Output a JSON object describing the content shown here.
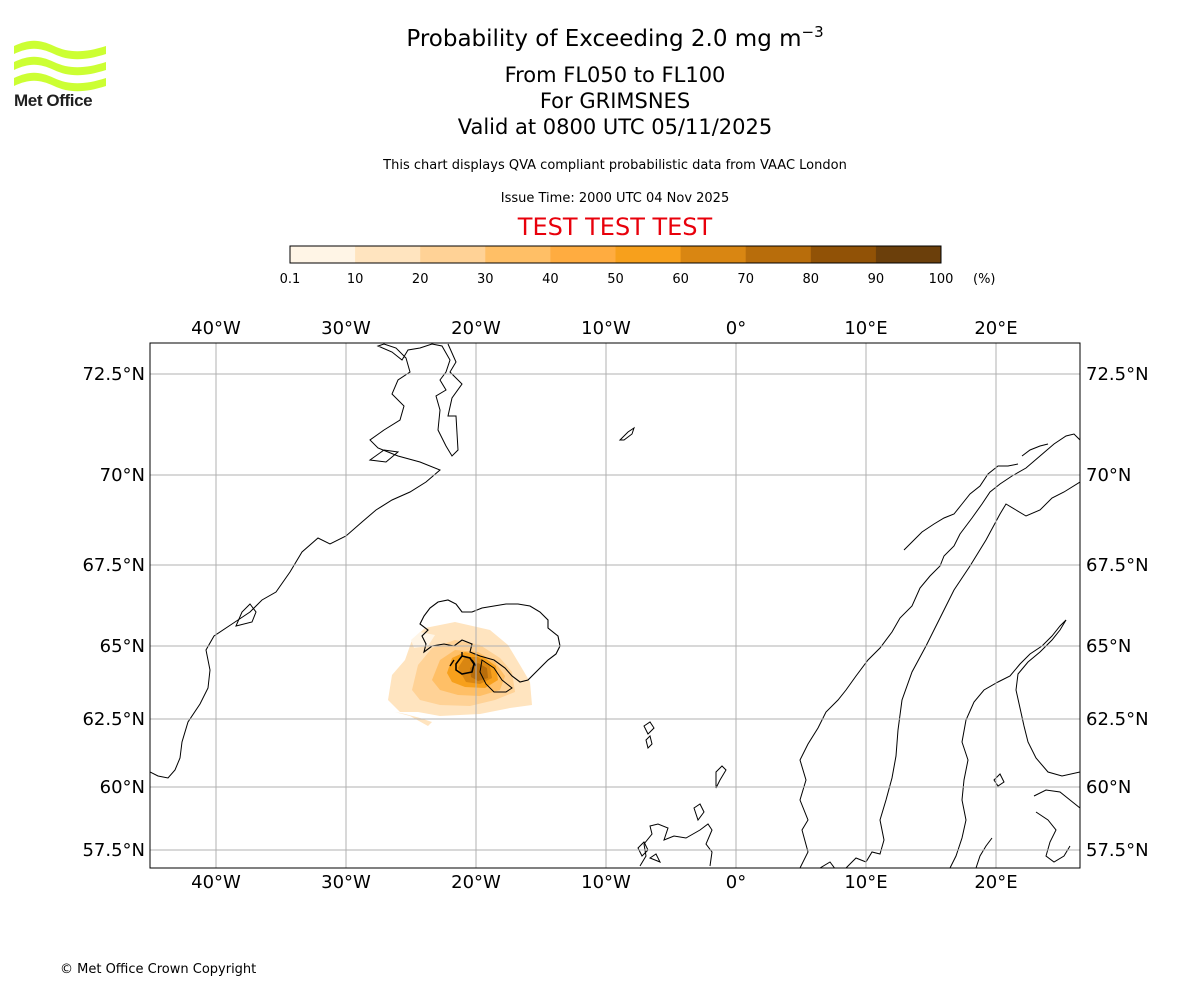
{
  "header": {
    "title_main": "Probability of Exceeding 2.0 mg m",
    "title_exponent": "−3",
    "flight_levels": "From FL050 to FL100",
    "volcano": "For GRIMSNES",
    "valid_time": "Valid at 0800 UTC 05/11/2025",
    "description": "This chart displays QVA compliant probabilistic data from VAAC London",
    "issue_time": "Issue Time: 2000 UTC 04 Nov 2025",
    "test_banner": "TEST TEST TEST"
  },
  "logo": {
    "text": "Met Office",
    "color": "#ccff33"
  },
  "colorbar": {
    "unit_label": "(%)",
    "ticks": [
      "0.1",
      "10",
      "20",
      "30",
      "40",
      "50",
      "60",
      "70",
      "80",
      "90",
      "100"
    ],
    "colors": [
      "#fff5e6",
      "#ffe4bf",
      "#ffd296",
      "#ffbf66",
      "#ffac40",
      "#f7a01c",
      "#d98612",
      "#b86d0b",
      "#915206",
      "#6b3f0b"
    ]
  },
  "map": {
    "lon_labels": [
      "40°W",
      "30°W",
      "20°W",
      "10°W",
      "0°",
      "10°E",
      "20°E"
    ],
    "lat_labels": [
      "72.5°N",
      "70°N",
      "67.5°N",
      "65°N",
      "62.5°N",
      "60°N",
      "57.5°N"
    ]
  },
  "footer": {
    "copyright": "© Met Office Crown Copyright"
  }
}
